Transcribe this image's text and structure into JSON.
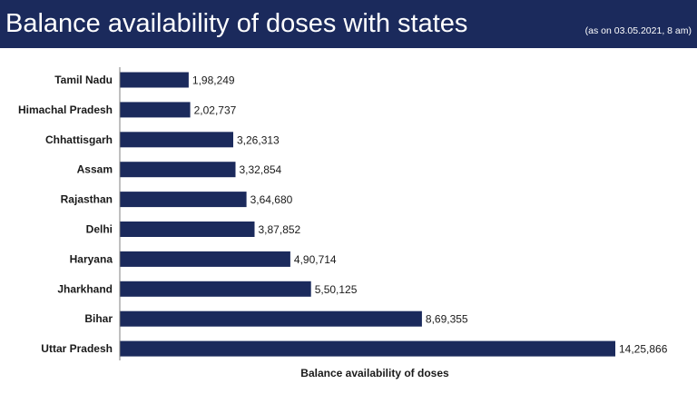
{
  "header": {
    "title": "Balance availability of doses with states",
    "subtitle": "(as on 03.05.2021, 8 am)"
  },
  "colors": {
    "header_bg": "#1b2a5c",
    "bar": "#1b2a5c"
  },
  "chart_data": {
    "type": "bar",
    "orientation": "horizontal",
    "categories": [
      "Tamil Nadu",
      "Himachal Pradesh",
      "Chhattisgarh",
      "Assam",
      "Rajasthan",
      "Delhi",
      "Haryana",
      "Jharkhand",
      "Bihar",
      "Uttar Pradesh"
    ],
    "values": [
      198249,
      202737,
      326313,
      332854,
      364680,
      387852,
      490714,
      550125,
      869355,
      1425866
    ],
    "value_labels": [
      "1,98,249",
      "2,02,737",
      "3,26,313",
      "3,32,854",
      "3,64,680",
      "3,87,852",
      "4,90,714",
      "5,50,125",
      "8,69,355",
      "14,25,866"
    ],
    "xlabel": "Balance availability of doses",
    "ylabel": "",
    "xlim": [
      0,
      1425866
    ],
    "grid": false,
    "legend": "none"
  }
}
